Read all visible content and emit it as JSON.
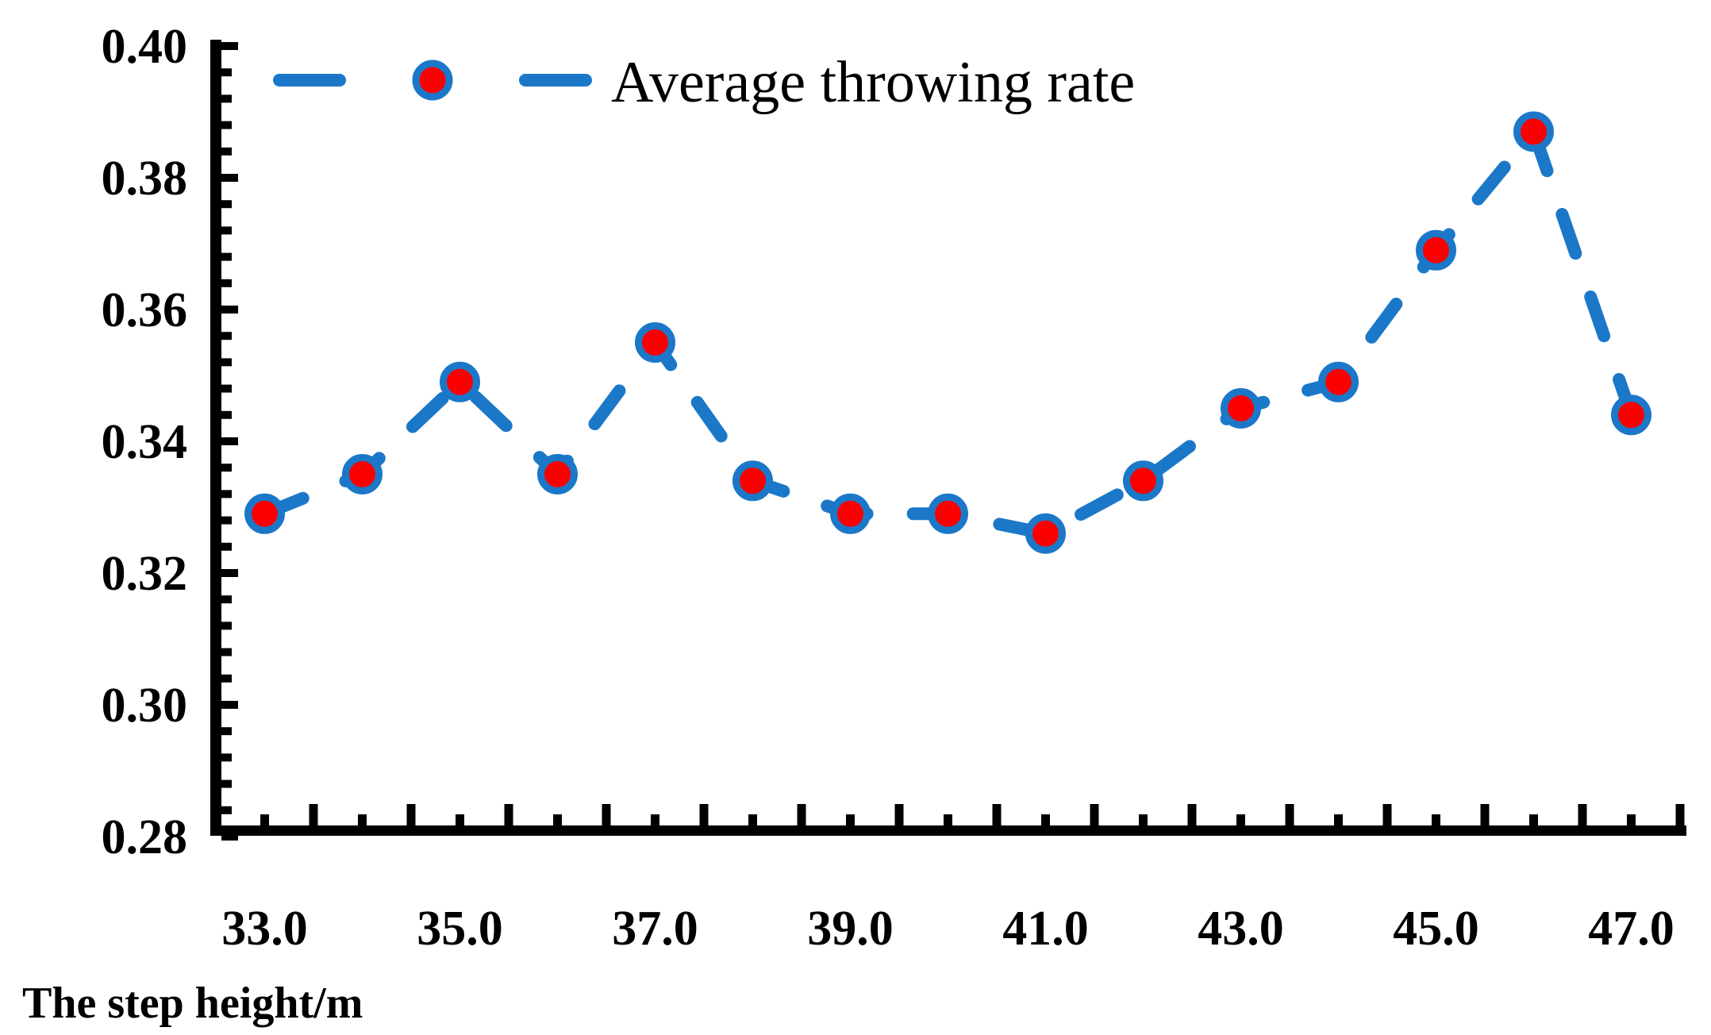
{
  "chart_data": {
    "type": "line",
    "title": "",
    "legend_label": "Average throwing rate",
    "legend_position": "top-center",
    "xlabel": "The step height/m",
    "ylabel": "",
    "x": [
      33,
      34,
      35,
      36,
      37,
      38,
      39,
      40,
      41,
      42,
      43,
      44,
      45,
      46,
      47
    ],
    "series": [
      {
        "name": "Average throwing rate",
        "values": [
          0.329,
          0.335,
          0.349,
          0.335,
          0.355,
          0.334,
          0.329,
          0.329,
          0.326,
          0.334,
          0.345,
          0.349,
          0.369,
          0.387,
          0.344
        ]
      }
    ],
    "xlim": [
      32.5,
      47.5
    ],
    "ylim": [
      0.28,
      0.4
    ],
    "x_tick_label_values": [
      33,
      35,
      37,
      39,
      41,
      43,
      45,
      47
    ],
    "x_tick_labels": [
      "33.0",
      "35.0",
      "37.0",
      "39.0",
      "41.0",
      "43.0",
      "45.0",
      "47.0"
    ],
    "x_minor_tick_step": 0.5,
    "y_tick_label_values": [
      0.4,
      0.38,
      0.36,
      0.34,
      0.32,
      0.3,
      0.28
    ],
    "y_tick_labels": [
      "0.40",
      "0.38",
      "0.36",
      "0.34",
      "0.32",
      "0.30",
      "0.28"
    ],
    "y_major_tick_step": 0.02,
    "y_minor_tick_step": 0.004,
    "grid": false,
    "line_style": "dashed",
    "marker": "circle",
    "colors": {
      "line": "#1B78C8",
      "marker_fill": "#FA0000",
      "marker_edge": "#1B78C8",
      "axis": "#000000",
      "text": "#000000",
      "background": "#FFFFFF"
    }
  }
}
